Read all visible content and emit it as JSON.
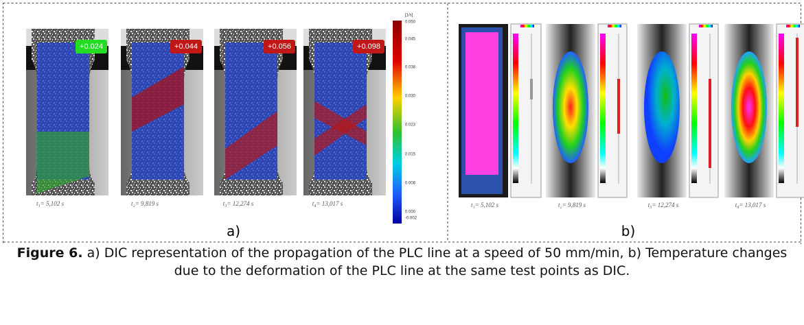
{
  "panel_a": {
    "label": "a)",
    "frames": [
      {
        "strain_label": "+0.024",
        "time": "t₁= 5,102 s"
      },
      {
        "strain_label": "+0.044",
        "time": "t₂= 9,819 s"
      },
      {
        "strain_label": "+0.056",
        "time": "t₃= 12,274 s"
      },
      {
        "strain_label": "+0.098",
        "time": "t₄= 13,017 s"
      }
    ],
    "colorbar": {
      "unit": "[1/s]",
      "ticks": [
        "0.050",
        "0.045",
        "0.038",
        "0.030",
        "0.023",
        "0.015",
        "0.008",
        "0.000",
        "-0.002"
      ]
    }
  },
  "panel_b": {
    "label": "b)",
    "frames": [
      {
        "time": "t₁= 5,102 s"
      },
      {
        "time": "t₂= 9,819 s"
      },
      {
        "time": "t₃= 12,274 s"
      },
      {
        "time": "t₄= 13,017 s"
      }
    ]
  },
  "caption": {
    "label": "Figure 6.",
    "text": "a) DIC representation of the propagation of the PLC line at a speed of 50 mm/min, b) Temperature changes due to the deformation of the PLC line at the same test points as DIC."
  }
}
